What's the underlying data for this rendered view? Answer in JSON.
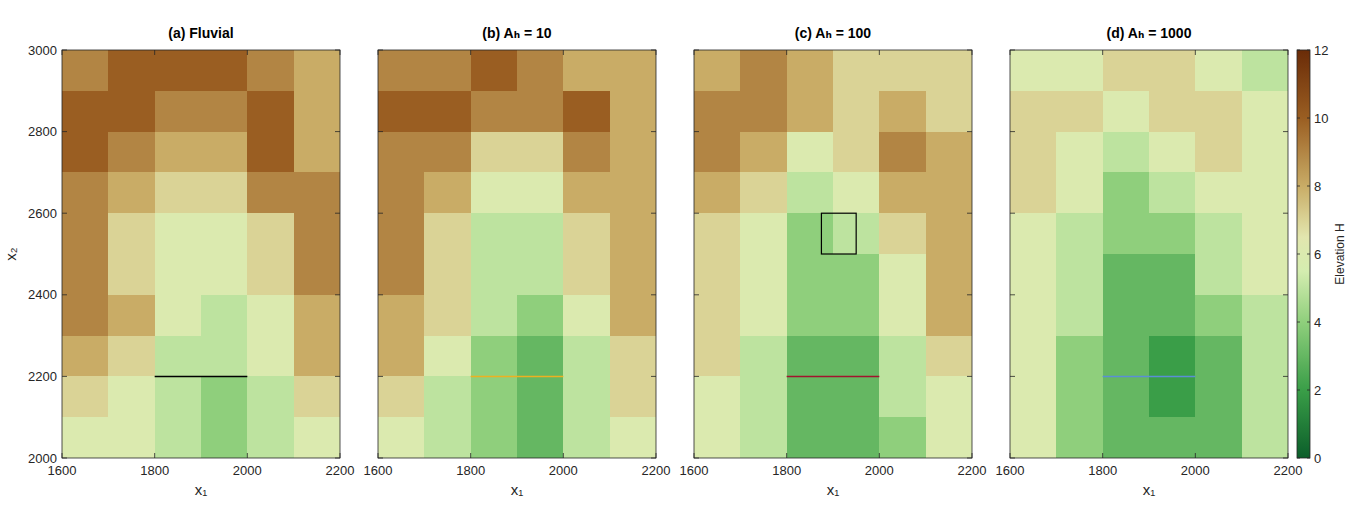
{
  "chart_data": [
    {
      "type": "heatmap",
      "title": "(a) Fluvial",
      "x_label": "x₁",
      "y_label": "x₂",
      "xlim": [
        1600,
        2200
      ],
      "ylim": [
        2000,
        3000
      ],
      "xticks": [
        1600,
        1800,
        2000,
        2200
      ],
      "yticks": [
        2000,
        2200,
        2400,
        2600,
        2800,
        3000
      ],
      "x": [
        1650,
        1750,
        1850,
        1950,
        2050,
        2150
      ],
      "y": [
        2950,
        2850,
        2750,
        2650,
        2550,
        2450,
        2350,
        2250,
        2150,
        2050
      ],
      "cells": [
        [
          9,
          10,
          10,
          10,
          9,
          8
        ],
        [
          10,
          10,
          9,
          9,
          10,
          8
        ],
        [
          10,
          9,
          8,
          8,
          10,
          8
        ],
        [
          9,
          8,
          7,
          7,
          9,
          9
        ],
        [
          9,
          7,
          6,
          6,
          7,
          9
        ],
        [
          9,
          7,
          6,
          6,
          7,
          9
        ],
        [
          9,
          8,
          6,
          5,
          6,
          8
        ],
        [
          8,
          7,
          5,
          5,
          6,
          8
        ],
        [
          7,
          6,
          5,
          4,
          5,
          7
        ],
        [
          6,
          6,
          5,
          4,
          5,
          6
        ]
      ],
      "lines": [
        {
          "x": [
            1800,
            2000
          ],
          "y": [
            2200,
            2200
          ],
          "color": "#000000"
        }
      ]
    },
    {
      "type": "heatmap",
      "title": "(b) Aₕ = 10",
      "x_label": "x₁",
      "xlim": [
        1600,
        2200
      ],
      "ylim": [
        2000,
        3000
      ],
      "xticks": [
        1600,
        1800,
        2000,
        2200
      ],
      "yticks": [
        2000,
        2200,
        2400,
        2600,
        2800,
        3000
      ],
      "tick_labels": "x",
      "x": [
        1650,
        1750,
        1850,
        1950,
        2050,
        2150
      ],
      "y": [
        2950,
        2850,
        2750,
        2650,
        2550,
        2450,
        2350,
        2250,
        2150,
        2050
      ],
      "cells": [
        [
          9,
          9,
          10,
          9,
          8,
          8
        ],
        [
          10,
          10,
          9,
          9,
          10,
          8
        ],
        [
          9,
          9,
          7,
          7,
          9,
          8
        ],
        [
          9,
          8,
          6,
          6,
          8,
          8
        ],
        [
          9,
          7,
          5,
          5,
          7,
          8
        ],
        [
          9,
          7,
          5,
          5,
          7,
          8
        ],
        [
          8,
          7,
          5,
          4,
          6,
          8
        ],
        [
          8,
          6,
          4,
          3,
          5,
          7
        ],
        [
          7,
          5,
          4,
          3,
          5,
          7
        ],
        [
          6,
          5,
          4,
          3,
          5,
          6
        ]
      ],
      "lines": [
        {
          "x": [
            1800,
            2000
          ],
          "y": [
            2200,
            2200
          ],
          "color": "#edb120"
        }
      ]
    },
    {
      "type": "heatmap",
      "title": "(c) Aₕ = 100",
      "x_label": "x₁",
      "xlim": [
        1600,
        2200
      ],
      "ylim": [
        2000,
        3000
      ],
      "xticks": [
        1600,
        1800,
        2000,
        2200
      ],
      "yticks": [
        2000,
        2200,
        2400,
        2600,
        2800,
        3000
      ],
      "tick_labels": "x",
      "x": [
        1650,
        1750,
        1850,
        1950,
        2050,
        2150
      ],
      "y": [
        2950,
        2850,
        2750,
        2650,
        2550,
        2450,
        2350,
        2250,
        2150,
        2050
      ],
      "cells": [
        [
          8,
          9,
          8,
          7,
          7,
          7
        ],
        [
          9,
          9,
          8,
          7,
          8,
          7
        ],
        [
          9,
          8,
          6,
          7,
          9,
          8
        ],
        [
          8,
          7,
          5,
          6,
          8,
          8
        ],
        [
          7,
          6,
          4,
          5,
          7,
          8
        ],
        [
          7,
          6,
          4,
          4,
          6,
          8
        ],
        [
          7,
          6,
          4,
          4,
          6,
          8
        ],
        [
          7,
          5,
          3,
          3,
          5,
          7
        ],
        [
          6,
          5,
          3,
          3,
          5,
          6
        ],
        [
          6,
          5,
          3,
          3,
          4,
          6
        ]
      ],
      "lines": [
        {
          "x": [
            1800,
            2000
          ],
          "y": [
            2200,
            2200
          ],
          "color": "#a2142f"
        }
      ],
      "box": {
        "x": [
          1875,
          1950
        ],
        "y": [
          2500,
          2600
        ],
        "color": "#000000"
      }
    },
    {
      "type": "heatmap",
      "title": "(d) Aₕ = 1000",
      "x_label": "x₁",
      "xlim": [
        1600,
        2200
      ],
      "ylim": [
        2000,
        3000
      ],
      "xticks": [
        1600,
        1800,
        2000,
        2200
      ],
      "yticks": [
        2000,
        2200,
        2400,
        2600,
        2800,
        3000
      ],
      "tick_labels": "x",
      "x": [
        1650,
        1750,
        1850,
        1950,
        2050,
        2150
      ],
      "y": [
        2950,
        2850,
        2750,
        2650,
        2550,
        2450,
        2350,
        2250,
        2150,
        2050
      ],
      "cells": [
        [
          6,
          6,
          7,
          7,
          6,
          5
        ],
        [
          7,
          7,
          6,
          7,
          7,
          6
        ],
        [
          7,
          6,
          5,
          6,
          7,
          6
        ],
        [
          7,
          6,
          4,
          5,
          6,
          6
        ],
        [
          6,
          5,
          4,
          4,
          5,
          6
        ],
        [
          6,
          5,
          3,
          3,
          5,
          6
        ],
        [
          6,
          5,
          3,
          3,
          4,
          5
        ],
        [
          6,
          4,
          3,
          2,
          3,
          5
        ],
        [
          6,
          4,
          3,
          2,
          3,
          5
        ],
        [
          6,
          4,
          3,
          3,
          3,
          5
        ]
      ],
      "lines": [
        {
          "x": [
            1800,
            2000
          ],
          "y": [
            2200,
            2200
          ],
          "color": "#5b8ed6"
        }
      ],
      "colorbar": {
        "label": "Elevation H",
        "range": [
          0,
          12
        ],
        "ticks": [
          0,
          2,
          4,
          6,
          8,
          10,
          12
        ]
      }
    }
  ]
}
